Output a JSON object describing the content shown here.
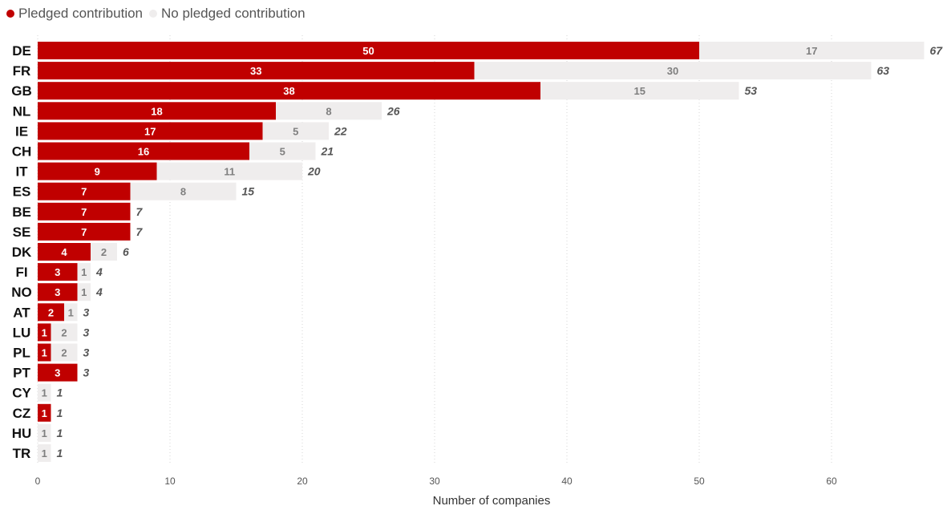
{
  "legend": {
    "pledged_label": "Pledged contribution",
    "no_pledged_label": "No pledged contribution"
  },
  "colors": {
    "pledged": "#c00000",
    "no_pledged": "#efeded",
    "pledged_text": "#ffffff",
    "no_pledged_text": "#7f7f7f",
    "grid": "#d6d6d6"
  },
  "chart_data": {
    "type": "bar",
    "orientation": "horizontal",
    "stacked": true,
    "categories": [
      "DE",
      "FR",
      "GB",
      "NL",
      "IE",
      "CH",
      "IT",
      "ES",
      "BE",
      "SE",
      "DK",
      "FI",
      "NO",
      "AT",
      "LU",
      "PL",
      "PT",
      "CY",
      "CZ",
      "HU",
      "TR"
    ],
    "series": [
      {
        "name": "Pledged contribution",
        "values": [
          50,
          33,
          38,
          18,
          17,
          16,
          9,
          7,
          7,
          7,
          4,
          3,
          3,
          2,
          1,
          1,
          3,
          0,
          1,
          0,
          0
        ]
      },
      {
        "name": "No pledged contribution",
        "values": [
          17,
          30,
          15,
          8,
          5,
          5,
          11,
          8,
          0,
          0,
          2,
          1,
          1,
          1,
          2,
          2,
          0,
          1,
          0,
          1,
          1
        ]
      }
    ],
    "totals": [
      67,
      63,
      53,
      26,
      22,
      21,
      20,
      15,
      7,
      7,
      6,
      4,
      4,
      3,
      3,
      3,
      3,
      1,
      1,
      1,
      1
    ],
    "xlabel": "Number of companies",
    "ylabel": "",
    "xlim": [
      0,
      67
    ],
    "xticks": [
      0,
      10,
      20,
      30,
      40,
      50,
      60
    ],
    "grid": "vertical dotted",
    "legend_position": "top-left"
  }
}
